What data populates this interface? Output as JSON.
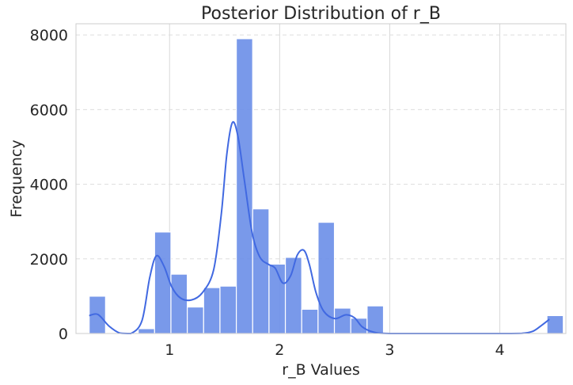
{
  "chart_data": {
    "type": "bar",
    "title": "Posterior Distribution of r_B",
    "xlabel": "r_B Values",
    "ylabel": "Frequency",
    "xlim": [
      0.15,
      4.6
    ],
    "ylim": [
      0,
      8300
    ],
    "xticks": [
      1,
      2,
      3,
      4
    ],
    "yticks": [
      0,
      2000,
      4000,
      6000,
      8000
    ],
    "grid": true,
    "bin_edges": [
      0.27,
      0.4185,
      0.567,
      0.7155,
      0.864,
      1.0125,
      1.161,
      1.3095,
      1.458,
      1.6065,
      1.755,
      1.9035,
      2.052,
      2.2005,
      2.349,
      2.4975,
      2.646,
      2.7945,
      2.943,
      3.0915,
      3.24,
      3.3885,
      3.537,
      3.6855,
      3.834,
      3.9825,
      4.131,
      4.2795,
      4.428
    ],
    "values": [
      1000,
      0,
      0,
      130,
      2720,
      1590,
      710,
      1230,
      1270,
      7900,
      3340,
      1860,
      2040,
      650,
      2980,
      680,
      410,
      740,
      0,
      0,
      0,
      0,
      0,
      0,
      0,
      0,
      0,
      0,
      480
    ],
    "kde": {
      "x": [
        0.27,
        0.35,
        0.45,
        0.55,
        0.65,
        0.75,
        0.82,
        0.88,
        0.95,
        1.02,
        1.1,
        1.2,
        1.3,
        1.4,
        1.47,
        1.52,
        1.57,
        1.62,
        1.68,
        1.75,
        1.82,
        1.9,
        1.96,
        2.03,
        2.1,
        2.16,
        2.22,
        2.27,
        2.33,
        2.4,
        2.5,
        2.6,
        2.68,
        2.75,
        2.85,
        3.0,
        3.5,
        4.0,
        4.2,
        4.3,
        4.38,
        4.45
      ],
      "y": [
        480,
        510,
        200,
        10,
        0,
        350,
        1500,
        2080,
        1800,
        1250,
        950,
        900,
        1100,
        1700,
        3200,
        4800,
        5650,
        5300,
        4100,
        2700,
        2050,
        1850,
        1750,
        1350,
        1550,
        2100,
        2230,
        1850,
        1100,
        600,
        400,
        500,
        420,
        180,
        40,
        0,
        0,
        0,
        5,
        60,
        220,
        380
      ],
      "color": "#4169e1"
    },
    "bar_color": "#6a8ee8",
    "line_color": "#4169e1"
  }
}
